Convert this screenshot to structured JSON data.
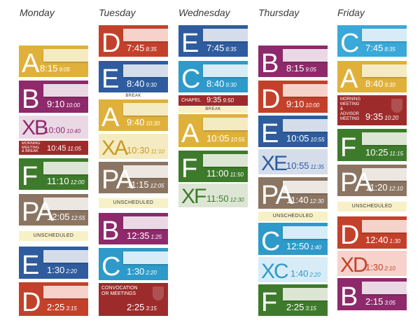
{
  "days": [
    "Monday",
    "Tuesday",
    "Wednesday",
    "Thursday",
    "Friday"
  ],
  "colors": {
    "yellow": "#E0B13A",
    "purple": "#8E2A6B",
    "green": "#3E7A2B",
    "brown": "#8B7562",
    "blue": "#2E5C9E",
    "red": "#C3412B",
    "cyan": "#3AA8D8",
    "teal": "#2E9AC9",
    "pale_yellow": "#F5EBC3",
    "pale_purple": "#EAD9E5",
    "pale_cyan": "#D7ECF6",
    "pale_green": "#DDE6D4",
    "dark_red": "#9E2B2B"
  },
  "monday": {
    "a": {
      "letter": "A",
      "start": "8:15",
      "end": "9:05"
    },
    "b": {
      "letter": "B",
      "start": "9:10",
      "end": "10:00"
    },
    "xb": {
      "letter": "XB",
      "start": "10:00",
      "end": "10:40"
    },
    "mm": {
      "label1": "MORNING",
      "label2": "MEETING",
      "label3": "& BREAK",
      "start": "10:45",
      "end": "11:05"
    },
    "f": {
      "letter": "F",
      "start": "11:10",
      "end": "12:00"
    },
    "pa": {
      "letter": "PA",
      "start": "12:05",
      "end": "12:55"
    },
    "unscheduled": "UNSCHEDULED",
    "e": {
      "letter": "E",
      "start": "1:30",
      "end": "2:20"
    },
    "d": {
      "letter": "D",
      "start": "2:25",
      "end": "3:15"
    }
  },
  "tuesday": {
    "d": {
      "letter": "D",
      "start": "7:45",
      "end": "8:35"
    },
    "e": {
      "letter": "E",
      "start": "8:40",
      "end": "9:30"
    },
    "break": "BREAK",
    "a": {
      "letter": "A",
      "start": "9:40",
      "end": "10:30"
    },
    "xa": {
      "letter": "XA",
      "start": "10:30",
      "end": "11:10"
    },
    "pa": {
      "letter": "PA",
      "start": "11:15",
      "end": "12:05"
    },
    "unscheduled": "UNSCHEDULED",
    "b": {
      "letter": "B",
      "start": "12:35",
      "end": "1:25"
    },
    "c": {
      "letter": "C",
      "start": "1:30",
      "end": "2:20"
    },
    "conv": {
      "label1": "CONVOCATION",
      "label2": "OR MEETINGS",
      "start": "2:25",
      "end": "3:15"
    }
  },
  "wednesday": {
    "e": {
      "letter": "E",
      "start": "7:45",
      "end": "8:35"
    },
    "c": {
      "letter": "C",
      "start": "8:40",
      "end": "9:30"
    },
    "chapel": {
      "label": "CHAPEL",
      "start": "9:35",
      "end": "9:50"
    },
    "break": "BREAK",
    "a": {
      "letter": "A",
      "start": "10:05",
      "end": "10:55"
    },
    "f": {
      "letter": "F",
      "start": "11:00",
      "end": "11:50"
    },
    "xf": {
      "letter": "XF",
      "start": "11:50",
      "end": "12:30"
    }
  },
  "thursday": {
    "b": {
      "letter": "B",
      "start": "8:15",
      "end": "9:05"
    },
    "d": {
      "letter": "D",
      "start": "9:10",
      "end": "10:00"
    },
    "e": {
      "letter": "E",
      "start": "10:05",
      "end": "10:55"
    },
    "xe": {
      "letter": "XE",
      "start": "10:55",
      "end": "11:35"
    },
    "pa": {
      "letter": "PA",
      "start": "11:40",
      "end": "12:30"
    },
    "unscheduled": "UNSCHEDULED",
    "c": {
      "letter": "C",
      "start": "12:50",
      "end": "1:40"
    },
    "xc": {
      "letter": "XC",
      "start": "1:40",
      "end": "2:20"
    },
    "f": {
      "letter": "F",
      "start": "2:25",
      "end": "3:15"
    }
  },
  "friday": {
    "c": {
      "letter": "C",
      "start": "7:45",
      "end": "8:35"
    },
    "a": {
      "letter": "A",
      "start": "8:40",
      "end": "9:30"
    },
    "mm": {
      "label1": "MORNING",
      "label2": "MEETING",
      "label3": "&",
      "label4": "ADVISOR",
      "label5": "MEETING",
      "start": "9:35",
      "end": "10:20"
    },
    "f": {
      "letter": "F",
      "start": "10:25",
      "end": "11:15"
    },
    "pa": {
      "letter": "PA",
      "start": "11:20",
      "end": "12:10"
    },
    "unscheduled": "UNSCHEDULED",
    "d": {
      "letter": "D",
      "start": "12:40",
      "end": "1:30"
    },
    "xd": {
      "letter": "XD",
      "start": "1:30",
      "end": "2:10"
    },
    "b": {
      "letter": "B",
      "start": "2:15",
      "end": "3:05"
    }
  }
}
